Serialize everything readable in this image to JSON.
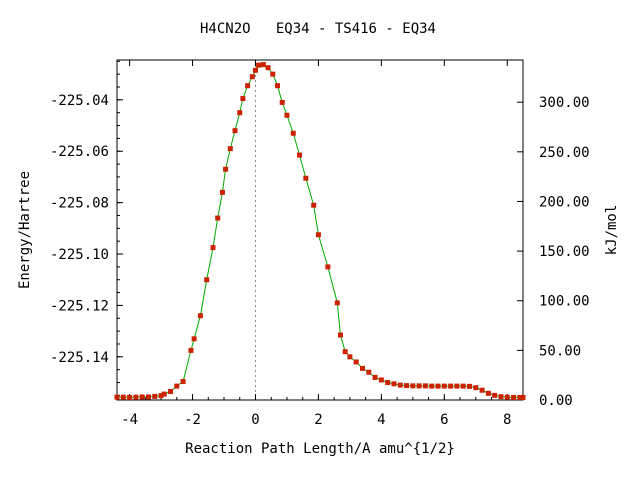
{
  "chart_data": {
    "type": "line",
    "title": "H4CN2O   EQ34 - TS416 - EQ34",
    "xlabel": "Reaction Path Length/A amu^{1/2}",
    "ylabel": "Energy/Hartree",
    "y2label": "kJ/mol",
    "xlim": [
      -4.4,
      8.5
    ],
    "ylim": [
      -225.1568,
      -225.0245
    ],
    "y2lim": [
      0,
      342.5
    ],
    "x_ticks": [
      -4,
      -2,
      0,
      2,
      4,
      6,
      8
    ],
    "x_tick_labels": [
      "-4",
      "-2",
      "0",
      "2",
      "4",
      "6",
      "8"
    ],
    "y_ticks": [
      -225.04,
      -225.06,
      -225.08,
      -225.1,
      -225.12,
      -225.14
    ],
    "y_tick_labels": [
      "-225.04",
      "-225.06",
      "-225.08",
      "-225.10",
      "-225.12",
      "-225.14"
    ],
    "y2_ticks": [
      0,
      50,
      100,
      150,
      200,
      250,
      300
    ],
    "y2_tick_labels": [
      "0.00",
      "50.00",
      "100.00",
      "150.00",
      "200.00",
      "250.00",
      "300.00"
    ],
    "ts_x": 0,
    "colors": {
      "line": "#00aa00",
      "marker": "#cc2200",
      "ts_line": "#888888"
    },
    "series": [
      {
        "x": [
          -4.4,
          -4.2,
          -4.0,
          -3.8,
          -3.6,
          -3.4,
          -3.2,
          -3.0,
          -2.9,
          -2.7,
          -2.5,
          -2.3,
          -2.05,
          -1.95,
          -1.75,
          -1.55,
          -1.35,
          -1.2,
          -1.05,
          -0.95,
          -0.8,
          -0.65,
          -0.5,
          -0.4,
          -0.25,
          -0.1,
          0.0,
          0.1,
          0.25,
          0.4,
          0.55,
          0.7,
          0.85,
          1.0,
          1.2,
          1.4,
          1.6,
          1.85,
          2.0,
          2.3,
          2.6,
          2.7,
          2.85,
          3.0,
          3.2,
          3.4,
          3.6,
          3.8,
          4.0,
          4.2,
          4.4,
          4.6,
          4.8,
          5.0,
          5.2,
          5.4,
          5.6,
          5.8,
          6.0,
          6.2,
          6.4,
          6.6,
          6.8,
          7.0,
          7.2,
          7.4,
          7.6,
          7.8,
          8.0,
          8.2,
          8.4,
          8.5
        ],
        "y": [
          -225.1557,
          -225.1557,
          -225.1558,
          -225.1557,
          -225.1556,
          -225.1556,
          -225.1554,
          -225.1551,
          -225.1545,
          -225.1535,
          -225.1514,
          -225.1496,
          -225.1375,
          -225.133,
          -225.124,
          -225.11,
          -225.0975,
          -225.086,
          -225.076,
          -225.067,
          -225.059,
          -225.052,
          -225.045,
          -225.0395,
          -225.0345,
          -225.031,
          -225.0285,
          -225.0265,
          -225.0263,
          -225.0275,
          -225.03,
          -225.0345,
          -225.041,
          -225.046,
          -225.053,
          -225.0615,
          -225.0705,
          -225.081,
          -225.0925,
          -225.105,
          -225.119,
          -225.1315,
          -225.138,
          -225.14,
          -225.142,
          -225.1445,
          -225.146,
          -225.148,
          -225.149,
          -225.15,
          -225.1505,
          -225.151,
          -225.1512,
          -225.1513,
          -225.1513,
          -225.1513,
          -225.1514,
          -225.1514,
          -225.1514,
          -225.1514,
          -225.1514,
          -225.1514,
          -225.1515,
          -225.152,
          -225.153,
          -225.1542,
          -225.155,
          -225.1555,
          -225.1557,
          -225.1558,
          -225.1558,
          -225.1558
        ]
      }
    ]
  }
}
